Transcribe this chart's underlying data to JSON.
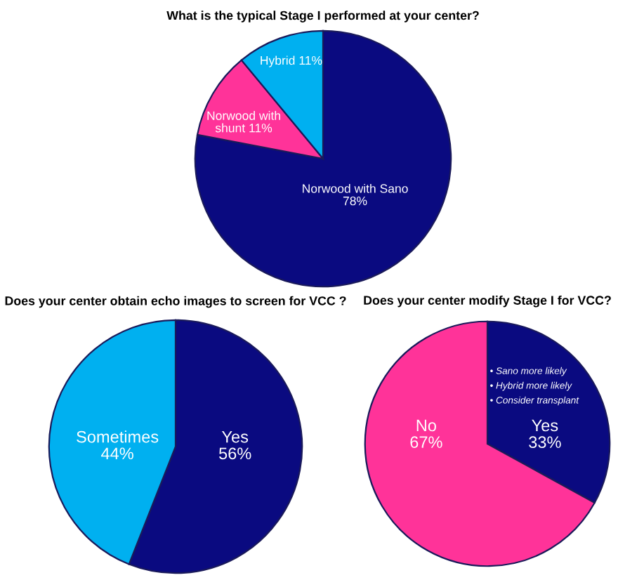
{
  "chart_data": [
    {
      "type": "pie",
      "title": "What is the typical Stage I performed at your center?",
      "categories": [
        "Norwood with Sano",
        "Norwood with shunt",
        "Hybrid"
      ],
      "values": [
        78,
        11,
        11
      ],
      "colors": [
        "#0a0a80",
        "#ff3399",
        "#00b0f0"
      ],
      "value_labels": [
        "78%",
        "11%",
        "11%"
      ]
    },
    {
      "type": "pie",
      "title": "Does your center obtain echo images to screen for VCC ?",
      "categories": [
        "Yes",
        "Sometimes"
      ],
      "values": [
        56,
        44
      ],
      "colors": [
        "#0a0a80",
        "#00b0f0"
      ],
      "value_labels": [
        "56%",
        "44%"
      ]
    },
    {
      "type": "pie",
      "title": "Does your center modify Stage I for VCC?",
      "categories": [
        "Yes",
        "No"
      ],
      "values": [
        33,
        67
      ],
      "colors": [
        "#0a0a80",
        "#ff3399"
      ],
      "value_labels": [
        "33%",
        "67%"
      ],
      "annotations": [
        "• Sano more likely",
        "• Hybrid more likely",
        "• Consider transplant"
      ]
    }
  ]
}
